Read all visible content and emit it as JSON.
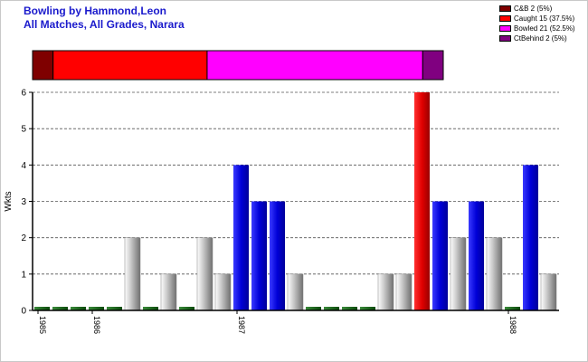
{
  "title_line1": "Bowling by Hammond,Leon",
  "title_line2": "All Matches, All Grades, Narara",
  "legend": [
    {
      "label": "C&B 2 (5%)",
      "color": "#7f0000"
    },
    {
      "label": "Caught 15 (37.5%)",
      "color": "#ff0000"
    },
    {
      "label": "Bowled 21 (52.5%)",
      "color": "#ff00ff"
    },
    {
      "label": "CtBehind 2 (5%)",
      "color": "#800080"
    }
  ],
  "chart_data": {
    "type": "bar",
    "ylabel": "Wkts",
    "ylim": [
      0,
      6
    ],
    "yticks": [
      0,
      1,
      2,
      3,
      4,
      5,
      6
    ],
    "grid": true,
    "values": [
      0,
      0,
      0,
      0,
      0,
      2,
      0,
      1,
      0,
      2,
      1,
      4,
      3,
      3,
      1,
      0,
      0,
      0,
      0,
      1,
      1,
      6,
      3,
      2,
      3,
      2,
      0,
      4,
      1
    ],
    "bar_types": [
      "nil",
      "nil",
      "nil",
      "nil",
      "nil",
      "none",
      "nil",
      "none",
      "nil",
      "none",
      "none",
      "bowled",
      "bowled",
      "bowled",
      "none",
      "nil",
      "nil",
      "nil",
      "nil",
      "none",
      "none",
      "caught",
      "bowled",
      "none",
      "bowled",
      "none",
      "nil",
      "bowled",
      "none"
    ],
    "x_date_labels": [
      {
        "label": "1985",
        "bar_index": 0
      },
      {
        "label": "1986",
        "bar_index": 3
      },
      {
        "label": "1987",
        "bar_index": 11
      },
      {
        "label": "1988",
        "bar_index": 26
      }
    ],
    "dismissal_breakdown": [
      {
        "type": "C&B",
        "count": 2,
        "percent": 5
      },
      {
        "type": "Caught",
        "count": 15,
        "percent": 37.5
      },
      {
        "type": "Bowled",
        "count": 21,
        "percent": 52.5
      },
      {
        "type": "CtBehind",
        "count": 2,
        "percent": 5
      }
    ]
  }
}
